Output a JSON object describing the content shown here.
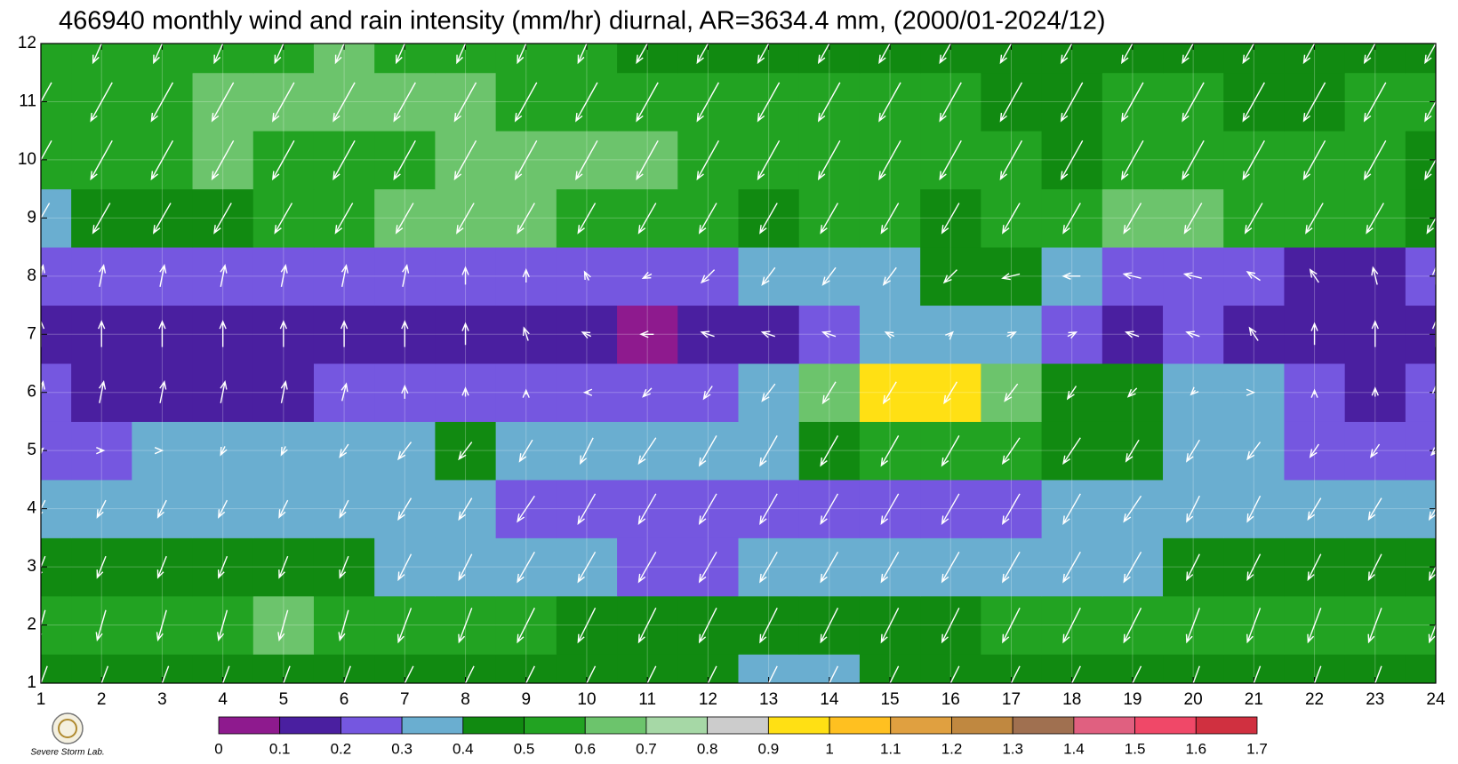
{
  "chart_data": {
    "type": "contour",
    "title": "466940 monthly wind and rain intensity (mm/hr) diurnal, AR=3634.4 mm, (2000/01-2024/12)",
    "x": [
      1,
      2,
      3,
      4,
      5,
      6,
      7,
      8,
      9,
      10,
      11,
      12,
      13,
      14,
      15,
      16,
      17,
      18,
      19,
      20,
      21,
      22,
      23,
      24
    ],
    "y": [
      1,
      2,
      3,
      4,
      5,
      6,
      7,
      8,
      9,
      10,
      11,
      12
    ],
    "xlim": [
      1,
      24
    ],
    "ylim": [
      1,
      12
    ],
    "xticks": [
      1,
      2,
      3,
      4,
      5,
      6,
      7,
      8,
      9,
      10,
      11,
      12,
      13,
      14,
      15,
      16,
      17,
      18,
      19,
      20,
      21,
      22,
      23,
      24
    ],
    "yticks": [
      1,
      2,
      3,
      4,
      5,
      6,
      7,
      8,
      9,
      10,
      11,
      12
    ],
    "grid": true,
    "z": [
      [
        0.45,
        0.45,
        0.46,
        0.46,
        0.46,
        0.45,
        0.42,
        0.42,
        0.4,
        0.4,
        0.4,
        0.4,
        0.35,
        0.38,
        0.4,
        0.45,
        0.48,
        0.48,
        0.48,
        0.48,
        0.48,
        0.48,
        0.48,
        0.45
      ],
      [
        0.52,
        0.52,
        0.5,
        0.52,
        0.6,
        0.52,
        0.5,
        0.5,
        0.52,
        0.45,
        0.45,
        0.45,
        0.42,
        0.44,
        0.45,
        0.45,
        0.5,
        0.5,
        0.5,
        0.52,
        0.52,
        0.52,
        0.52,
        0.52
      ],
      [
        0.4,
        0.4,
        0.41,
        0.42,
        0.45,
        0.43,
        0.38,
        0.38,
        0.38,
        0.3,
        0.29,
        0.28,
        0.3,
        0.3,
        0.3,
        0.3,
        0.3,
        0.33,
        0.38,
        0.4,
        0.42,
        0.42,
        0.42,
        0.42
      ],
      [
        0.32,
        0.3,
        0.32,
        0.33,
        0.33,
        0.33,
        0.34,
        0.34,
        0.28,
        0.26,
        0.26,
        0.26,
        0.27,
        0.28,
        0.28,
        0.28,
        0.28,
        0.32,
        0.35,
        0.35,
        0.35,
        0.3,
        0.3,
        0.3
      ],
      [
        0.22,
        0.24,
        0.3,
        0.3,
        0.33,
        0.33,
        0.34,
        0.41,
        0.35,
        0.35,
        0.36,
        0.36,
        0.37,
        0.45,
        0.55,
        0.55,
        0.5,
        0.45,
        0.42,
        0.35,
        0.3,
        0.28,
        0.25,
        0.25
      ],
      [
        0.2,
        0.17,
        0.16,
        0.16,
        0.18,
        0.22,
        0.24,
        0.25,
        0.25,
        0.25,
        0.28,
        0.28,
        0.35,
        0.6,
        0.95,
        0.93,
        0.6,
        0.45,
        0.42,
        0.3,
        0.3,
        0.2,
        0.18,
        0.2
      ],
      [
        0.15,
        0.14,
        0.13,
        0.13,
        0.14,
        0.15,
        0.15,
        0.15,
        0.15,
        0.15,
        0.09,
        0.15,
        0.18,
        0.22,
        0.32,
        0.35,
        0.3,
        0.25,
        0.12,
        0.22,
        0.15,
        0.12,
        0.12,
        0.13
      ],
      [
        0.25,
        0.25,
        0.25,
        0.25,
        0.25,
        0.26,
        0.27,
        0.28,
        0.28,
        0.28,
        0.28,
        0.28,
        0.3,
        0.32,
        0.38,
        0.42,
        0.42,
        0.35,
        0.25,
        0.25,
        0.25,
        0.15,
        0.15,
        0.2
      ],
      [
        0.38,
        0.42,
        0.45,
        0.47,
        0.5,
        0.52,
        0.6,
        0.62,
        0.62,
        0.58,
        0.52,
        0.5,
        0.45,
        0.5,
        0.52,
        0.45,
        0.52,
        0.55,
        0.62,
        0.65,
        0.52,
        0.5,
        0.5,
        0.45
      ],
      [
        0.5,
        0.5,
        0.55,
        0.6,
        0.58,
        0.56,
        0.57,
        0.6,
        0.64,
        0.64,
        0.6,
        0.55,
        0.52,
        0.55,
        0.55,
        0.52,
        0.5,
        0.48,
        0.5,
        0.5,
        0.5,
        0.5,
        0.5,
        0.45
      ],
      [
        0.55,
        0.55,
        0.56,
        0.62,
        0.65,
        0.65,
        0.63,
        0.6,
        0.55,
        0.55,
        0.53,
        0.52,
        0.52,
        0.52,
        0.52,
        0.5,
        0.48,
        0.47,
        0.5,
        0.5,
        0.45,
        0.45,
        0.5,
        0.52
      ],
      [
        0.55,
        0.55,
        0.55,
        0.55,
        0.58,
        0.6,
        0.55,
        0.55,
        0.52,
        0.5,
        0.48,
        0.45,
        0.45,
        0.45,
        0.45,
        0.45,
        0.45,
        0.45,
        0.45,
        0.45,
        0.48,
        0.45,
        0.45,
        0.45
      ]
    ],
    "wind_u": [
      [
        -0.3,
        -0.3,
        -0.3,
        -0.3,
        -0.3,
        -0.3,
        -0.4,
        -0.4,
        -0.4,
        -0.4,
        -0.4,
        -0.4,
        -0.4,
        -0.4,
        -0.4,
        -0.4,
        -0.4,
        -0.4,
        -0.4,
        -0.3,
        -0.3,
        -0.3,
        -0.3,
        -0.3
      ],
      [
        -0.2,
        -0.2,
        -0.2,
        -0.2,
        -0.2,
        -0.2,
        -0.3,
        -0.3,
        -0.4,
        -0.4,
        -0.4,
        -0.4,
        -0.4,
        -0.4,
        -0.4,
        -0.4,
        -0.4,
        -0.4,
        -0.4,
        -0.3,
        -0.3,
        -0.3,
        -0.3,
        -0.3
      ],
      [
        -0.2,
        -0.2,
        -0.2,
        -0.2,
        -0.2,
        -0.2,
        -0.3,
        -0.3,
        -0.4,
        -0.4,
        -0.4,
        -0.4,
        -0.4,
        -0.4,
        -0.4,
        -0.4,
        -0.4,
        -0.4,
        -0.4,
        -0.3,
        -0.3,
        -0.3,
        -0.3,
        -0.3
      ],
      [
        -0.2,
        -0.2,
        -0.2,
        -0.2,
        -0.2,
        -0.2,
        -0.3,
        -0.3,
        -0.4,
        -0.4,
        -0.4,
        -0.4,
        -0.4,
        -0.4,
        -0.4,
        -0.4,
        -0.4,
        -0.4,
        -0.4,
        -0.3,
        -0.3,
        -0.3,
        -0.3,
        -0.3
      ],
      [
        0.1,
        0.1,
        0,
        -0.1,
        -0.1,
        -0.2,
        -0.3,
        -0.3,
        -0.3,
        -0.3,
        -0.4,
        -0.4,
        -0.4,
        -0.4,
        -0.4,
        -0.4,
        -0.4,
        -0.4,
        -0.3,
        -0.3,
        -0.3,
        -0.2,
        -0.2,
        -0.2
      ],
      [
        0.1,
        0.1,
        0.1,
        0.1,
        0.1,
        0.1,
        0,
        0,
        0,
        -0.1,
        -0.2,
        -0.2,
        -0.3,
        -0.3,
        -0.3,
        -0.3,
        -0.3,
        -0.2,
        -0.2,
        -0.1,
        0,
        0,
        0,
        0
      ],
      [
        0,
        0,
        0,
        0,
        0,
        0,
        0,
        0,
        -0.1,
        -0.2,
        -0.3,
        -0.3,
        -0.3,
        -0.3,
        -0.2,
        0.1,
        0.2,
        0.2,
        -0.3,
        -0.3,
        -0.2,
        0,
        0,
        0
      ],
      [
        0.1,
        0.1,
        0.1,
        0.1,
        0.1,
        0.1,
        0.1,
        0,
        0,
        -0.1,
        -0.2,
        -0.3,
        -0.3,
        -0.3,
        -0.3,
        -0.3,
        -0.4,
        -0.4,
        -0.4,
        -0.4,
        -0.3,
        -0.2,
        -0.1,
        0
      ],
      [
        -0.4,
        -0.4,
        -0.4,
        -0.4,
        -0.4,
        -0.4,
        -0.4,
        -0.4,
        -0.4,
        -0.4,
        -0.4,
        -0.4,
        -0.4,
        -0.4,
        -0.4,
        -0.4,
        -0.4,
        -0.4,
        -0.4,
        -0.4,
        -0.4,
        -0.4,
        -0.4,
        -0.4
      ],
      [
        -0.5,
        -0.5,
        -0.5,
        -0.5,
        -0.5,
        -0.5,
        -0.5,
        -0.5,
        -0.5,
        -0.5,
        -0.5,
        -0.5,
        -0.5,
        -0.5,
        -0.5,
        -0.5,
        -0.5,
        -0.5,
        -0.5,
        -0.5,
        -0.5,
        -0.5,
        -0.5,
        -0.5
      ],
      [
        -0.5,
        -0.5,
        -0.5,
        -0.5,
        -0.5,
        -0.5,
        -0.5,
        -0.5,
        -0.5,
        -0.5,
        -0.5,
        -0.5,
        -0.5,
        -0.5,
        -0.5,
        -0.5,
        -0.5,
        -0.5,
        -0.5,
        -0.5,
        -0.5,
        -0.5,
        -0.5,
        -0.5
      ],
      [
        -0.4,
        -0.4,
        -0.4,
        -0.4,
        -0.4,
        -0.4,
        -0.4,
        -0.4,
        -0.4,
        -0.4,
        -0.5,
        -0.5,
        -0.5,
        -0.5,
        -0.5,
        -0.5,
        -0.5,
        -0.5,
        -0.5,
        -0.5,
        -0.5,
        -0.5,
        -0.5,
        -0.5
      ]
    ],
    "wind_v": [
      [
        -0.8,
        -0.8,
        -0.8,
        -0.8,
        -0.8,
        -0.8,
        -0.8,
        -0.8,
        -0.8,
        -0.8,
        -0.8,
        -0.8,
        -0.8,
        -0.8,
        -0.8,
        -0.8,
        -0.8,
        -0.8,
        -0.8,
        -0.8,
        -0.8,
        -0.8,
        -0.8,
        -0.8
      ],
      [
        -0.7,
        -0.7,
        -0.7,
        -0.7,
        -0.7,
        -0.7,
        -0.8,
        -0.8,
        -0.8,
        -0.8,
        -0.8,
        -0.8,
        -0.8,
        -0.8,
        -0.8,
        -0.8,
        -0.8,
        -0.8,
        -0.8,
        -0.8,
        -0.8,
        -0.8,
        -0.8,
        -0.8
      ],
      [
        -0.5,
        -0.5,
        -0.5,
        -0.5,
        -0.5,
        -0.5,
        -0.6,
        -0.6,
        -0.7,
        -0.7,
        -0.7,
        -0.7,
        -0.7,
        -0.7,
        -0.7,
        -0.7,
        -0.7,
        -0.7,
        -0.7,
        -0.6,
        -0.6,
        -0.6,
        -0.6,
        -0.6
      ],
      [
        -0.4,
        -0.4,
        -0.4,
        -0.4,
        -0.4,
        -0.4,
        -0.5,
        -0.5,
        -0.6,
        -0.7,
        -0.7,
        -0.7,
        -0.7,
        -0.7,
        -0.7,
        -0.7,
        -0.7,
        -0.7,
        -0.6,
        -0.6,
        -0.6,
        -0.5,
        -0.5,
        -0.5
      ],
      [
        0.1,
        0,
        0,
        -0.2,
        -0.2,
        -0.3,
        -0.4,
        -0.4,
        -0.5,
        -0.6,
        -0.6,
        -0.7,
        -0.7,
        -0.7,
        -0.7,
        -0.7,
        -0.6,
        -0.6,
        -0.5,
        -0.5,
        -0.4,
        -0.3,
        -0.3,
        -0.2
      ],
      [
        0.5,
        0.5,
        0.5,
        0.5,
        0.5,
        0.4,
        0.3,
        0.2,
        0.1,
        0,
        -0.2,
        -0.3,
        -0.4,
        -0.5,
        -0.5,
        -0.5,
        -0.4,
        -0.3,
        -0.2,
        -0.1,
        0,
        0.1,
        0.2,
        0.3
      ],
      [
        0.6,
        0.6,
        0.6,
        0.6,
        0.6,
        0.6,
        0.6,
        0.5,
        0.3,
        0.1,
        0,
        0.1,
        0.1,
        0.1,
        0.1,
        0.1,
        0.1,
        0.1,
        0.1,
        0.1,
        0.3,
        0.5,
        0.6,
        0.6
      ],
      [
        0.5,
        0.5,
        0.5,
        0.5,
        0.5,
        0.5,
        0.5,
        0.4,
        0.3,
        0.2,
        -0.1,
        -0.3,
        -0.4,
        -0.4,
        -0.4,
        -0.3,
        -0.1,
        0,
        0.1,
        0.1,
        0.2,
        0.3,
        0.4,
        0.4
      ],
      [
        -0.7,
        -0.7,
        -0.7,
        -0.7,
        -0.7,
        -0.7,
        -0.7,
        -0.7,
        -0.7,
        -0.7,
        -0.7,
        -0.7,
        -0.7,
        -0.7,
        -0.7,
        -0.7,
        -0.7,
        -0.7,
        -0.7,
        -0.7,
        -0.7,
        -0.7,
        -0.7,
        -0.7
      ],
      [
        -0.9,
        -0.9,
        -0.9,
        -0.9,
        -0.9,
        -0.9,
        -0.9,
        -0.9,
        -0.9,
        -0.9,
        -0.9,
        -0.9,
        -0.9,
        -0.9,
        -0.9,
        -0.9,
        -0.9,
        -0.9,
        -0.9,
        -0.9,
        -0.9,
        -0.9,
        -0.9,
        -0.9
      ],
      [
        -0.9,
        -0.9,
        -0.9,
        -0.9,
        -0.9,
        -0.9,
        -0.9,
        -0.9,
        -0.9,
        -0.9,
        -0.9,
        -0.9,
        -0.9,
        -0.9,
        -0.9,
        -0.9,
        -0.9,
        -0.9,
        -0.9,
        -0.9,
        -0.9,
        -0.9,
        -0.9,
        -0.9
      ],
      [
        -0.9,
        -0.9,
        -0.9,
        -0.9,
        -0.9,
        -0.9,
        -0.9,
        -0.9,
        -0.9,
        -0.9,
        -0.9,
        -0.9,
        -0.9,
        -0.9,
        -0.9,
        -0.9,
        -0.9,
        -0.9,
        -0.9,
        -0.9,
        -0.9,
        -0.9,
        -0.9,
        -0.9
      ]
    ],
    "arrow_color": "#ffffff",
    "levels": [
      0,
      0.1,
      0.2,
      0.3,
      0.4,
      0.5,
      0.6,
      0.7,
      0.8,
      0.9,
      1,
      1.1,
      1.2,
      1.3,
      1.4,
      1.5,
      1.6,
      1.7
    ],
    "colors": [
      "#8e1a8e",
      "#4a1fa0",
      "#7557e0",
      "#6aaed0",
      "#118a11",
      "#22a322",
      "#6cc46c",
      "#a6d8a6",
      "#cccccc",
      "#ffe014",
      "#ffc020",
      "#e0a040",
      "#c08840",
      "#a07050",
      "#e06080",
      "#f04868",
      "#d03040"
    ],
    "logo_text": "Severe Storm Lab."
  }
}
